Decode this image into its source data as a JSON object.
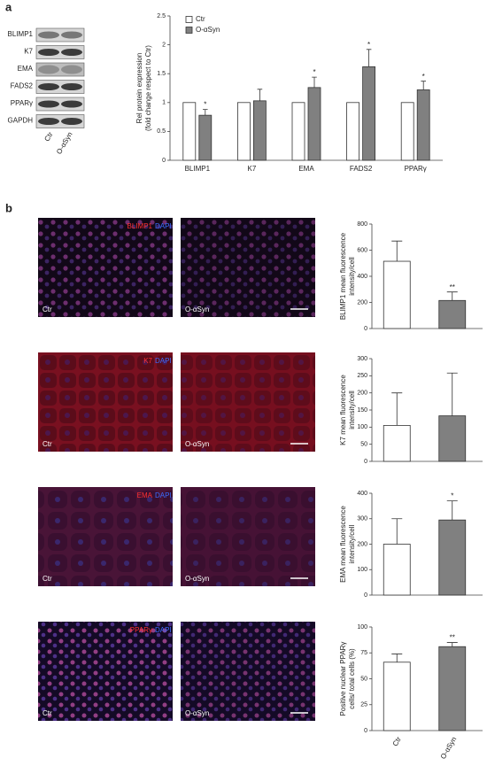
{
  "figure": {
    "panel_labels": [
      "a",
      "b"
    ],
    "blot": {
      "rows": [
        "BLIMP1",
        "K7",
        "EMA",
        "FADS2",
        "PPARγ",
        "GAPDH"
      ],
      "lanes": [
        "Ctr",
        "O-αSyn"
      ]
    },
    "micrographs": [
      {
        "marker": "BLIMP1",
        "counterstain": "DAPI",
        "conditions": [
          "Ctr",
          "O-αSyn"
        ]
      },
      {
        "marker": "K7",
        "counterstain": "DAPI",
        "conditions": [
          "Ctr",
          "O-αSyn"
        ]
      },
      {
        "marker": "EMA",
        "counterstain": "DAPI",
        "conditions": [
          "Ctr",
          "O-αSyn"
        ]
      },
      {
        "marker": "PPARγ",
        "counterstain": "DAPI",
        "conditions": [
          "Ctr",
          "O-αSyn"
        ]
      }
    ]
  },
  "chart_data": [
    {
      "type": "bar",
      "ylabel": [
        "Rel protein expression",
        "(fold change respect to Ctr)"
      ],
      "categories": [
        "BLIMP1",
        "K7",
        "EMA",
        "FADS2",
        "PPARγ"
      ],
      "series": [
        {
          "name": "Ctr",
          "color": "#ffffff",
          "values": [
            1,
            1,
            1,
            1,
            1
          ]
        },
        {
          "name": "O-αSyn",
          "color": "#808080",
          "values": [
            0.78,
            1.03,
            1.26,
            1.62,
            1.22
          ],
          "errors": [
            0.1,
            0.2,
            0.18,
            0.3,
            0.15
          ],
          "significance": [
            "*",
            null,
            "*",
            "*",
            "*"
          ]
        }
      ],
      "ylim": [
        0,
        2.5
      ],
      "yticks": [
        0,
        0.5,
        1,
        1.5,
        2,
        2.5
      ],
      "legend": "top-left"
    },
    {
      "type": "bar",
      "ylabel": [
        "BLIMP1 mean fluorescence",
        "intensity/cell"
      ],
      "values": [
        515,
        215
      ],
      "errors": [
        155,
        65
      ],
      "colors": [
        "#ffffff",
        "#808080"
      ],
      "significance": [
        null,
        "**"
      ],
      "ylim": [
        0,
        800
      ],
      "yticks": [
        0,
        200,
        400,
        600,
        800
      ]
    },
    {
      "type": "bar",
      "ylabel": [
        "K7 mean fluorescence",
        "intensity/cell"
      ],
      "values": [
        105,
        133
      ],
      "errors": [
        95,
        125
      ],
      "colors": [
        "#ffffff",
        "#808080"
      ],
      "ylim": [
        0,
        300
      ],
      "yticks": [
        0,
        50,
        100,
        150,
        200,
        250,
        300
      ]
    },
    {
      "type": "bar",
      "ylabel": [
        "EMA mean fluorescence",
        "intensity/cell"
      ],
      "values": [
        200,
        295
      ],
      "errors": [
        100,
        75
      ],
      "colors": [
        "#ffffff",
        "#808080"
      ],
      "significance": [
        null,
        "*"
      ],
      "ylim": [
        0,
        400
      ],
      "yticks": [
        0,
        100,
        200,
        300,
        400
      ]
    },
    {
      "type": "bar",
      "ylabel": [
        "Positive nuclear PPARγ",
        "cells/ total cells (%)"
      ],
      "categories": [
        "Ctr",
        "O-αSyn"
      ],
      "values": [
        66,
        81
      ],
      "errors": [
        8,
        4
      ],
      "colors": [
        "#ffffff",
        "#808080"
      ],
      "significance": [
        null,
        "**"
      ],
      "ylim": [
        0,
        100
      ],
      "yticks": [
        0,
        25,
        50,
        75,
        100
      ]
    }
  ]
}
